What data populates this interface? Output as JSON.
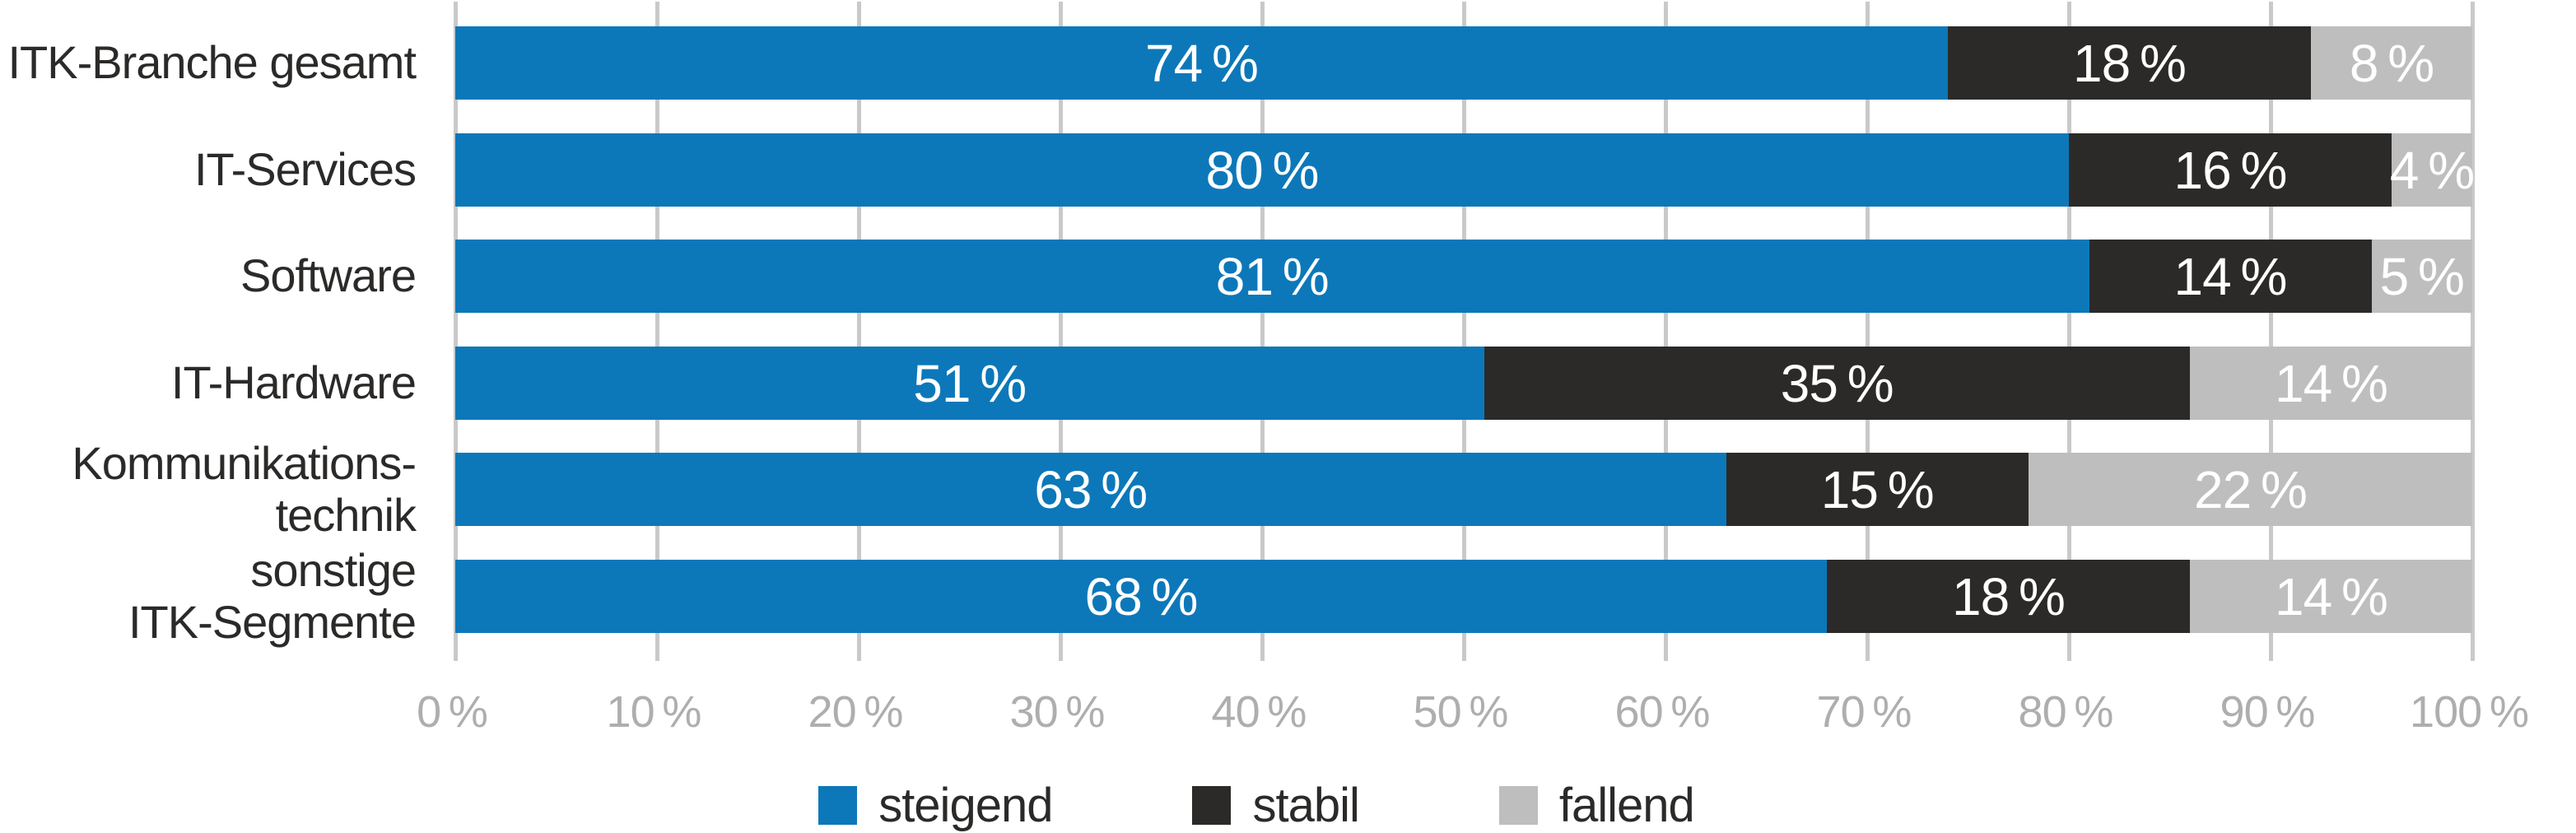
{
  "chart_data": {
    "type": "bar",
    "orientation": "horizontal-stacked",
    "title": "",
    "xlabel": "",
    "ylabel": "",
    "xlim": [
      0,
      100
    ],
    "grid": "vertical",
    "legend_position": "bottom-center",
    "categories": [
      "ITK-Branche gesamt",
      "IT-Services",
      "Software",
      "IT-Hardware",
      "Kommunikations-\ntechnik",
      "sonstige\nITK-Segmente"
    ],
    "series": [
      {
        "name": "steigend",
        "color": "#0C78B9",
        "values": [
          74,
          80,
          81,
          51,
          63,
          68
        ]
      },
      {
        "name": "stabil",
        "color": "#2B2A29",
        "values": [
          18,
          16,
          14,
          35,
          15,
          18
        ]
      },
      {
        "name": "fallend",
        "color": "#BEBEBE",
        "values": [
          8,
          4,
          5,
          14,
          22,
          14
        ]
      }
    ],
    "value_labels": [
      [
        "74 %",
        "18 %",
        "8 %"
      ],
      [
        "80 %",
        "16 %",
        "4 %"
      ],
      [
        "81 %",
        "14 %",
        "5 %"
      ],
      [
        "51 %",
        "35 %",
        "14 %"
      ],
      [
        "63 %",
        "15 %",
        "22 %"
      ],
      [
        "68 %",
        "18 %",
        "14 %"
      ]
    ],
    "x_axis": {
      "tick_labels": [
        "0 %",
        "10 %",
        "20 %",
        "30 %",
        "40 %",
        "50 %",
        "60 %",
        "70 %",
        "80 %",
        "90 %",
        "100 %"
      ],
      "tick_color": "#AFAEAE",
      "gridline_color": "#C9C9C9"
    },
    "legend": [
      {
        "label": "steigend",
        "color": "#0C78B9"
      },
      {
        "label": "stabil",
        "color": "#2B2A29"
      },
      {
        "label": "fallend",
        "color": "#BEBEBE"
      }
    ]
  }
}
